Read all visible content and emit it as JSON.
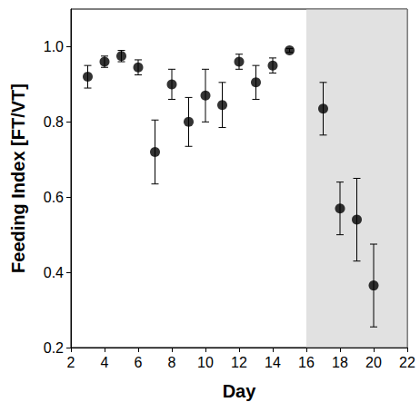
{
  "chart_data": {
    "type": "scatter",
    "x_label": "Day",
    "y_label": "Feeding Index [FT/VT]",
    "x": [
      3,
      4,
      5,
      6,
      7,
      8,
      9,
      10,
      11,
      12,
      13,
      14,
      15,
      17,
      18,
      19,
      20
    ],
    "values": [
      0.92,
      0.96,
      0.975,
      0.945,
      0.72,
      0.9,
      0.8,
      0.87,
      0.845,
      0.96,
      0.905,
      0.95,
      0.99,
      0.835,
      0.57,
      0.54,
      0.365
    ],
    "errors": [
      0.03,
      0.015,
      0.015,
      0.02,
      0.085,
      0.04,
      0.065,
      0.07,
      0.06,
      0.02,
      0.045,
      0.02,
      0.005,
      0.07,
      0.07,
      0.11,
      0.11
    ],
    "shaded_x": [
      16,
      22
    ],
    "color": "#000000",
    "marker": "circle",
    "xlim": [
      2,
      22
    ],
    "xticks": [
      2,
      4,
      6,
      8,
      10,
      12,
      14,
      16,
      18,
      20,
      22
    ],
    "ylim": [
      0.2,
      1.1
    ],
    "yticks": [
      0.2,
      0.4,
      0.6,
      0.8,
      {
        "value": 1,
        "label": "1.0"
      }
    ],
    "grid": false
  }
}
